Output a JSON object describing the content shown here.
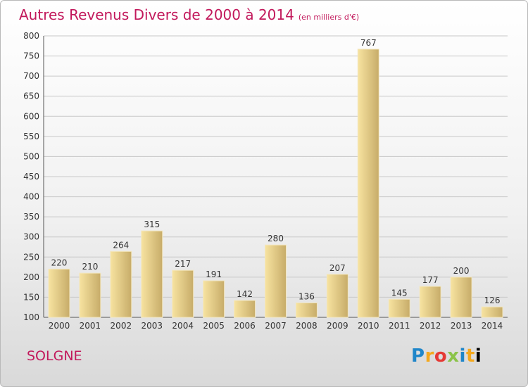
{
  "title": "Autres Revenus Divers de 2000 à 2014",
  "unit": "(en milliers d'€)",
  "commune": "SOLGNE",
  "logo": [
    "P",
    "r",
    "o",
    "x",
    "i",
    "t",
    "i"
  ],
  "colors": {
    "title": "#c2185b",
    "bar_light": "#f7e3a0",
    "bar_dark": "#c7ac69",
    "grid": "#c8c8c8"
  },
  "chart_data": {
    "type": "bar",
    "categories": [
      "2000",
      "2001",
      "2002",
      "2003",
      "2004",
      "2005",
      "2006",
      "2007",
      "2008",
      "2009",
      "2010",
      "2011",
      "2012",
      "2013",
      "2014"
    ],
    "values": [
      220,
      210,
      264,
      315,
      217,
      191,
      142,
      280,
      136,
      207,
      767,
      145,
      177,
      200,
      126
    ],
    "ylim": [
      100,
      800
    ],
    "yticks": [
      100,
      150,
      200,
      250,
      300,
      350,
      400,
      450,
      500,
      550,
      600,
      650,
      700,
      750,
      800
    ],
    "grid": true
  }
}
